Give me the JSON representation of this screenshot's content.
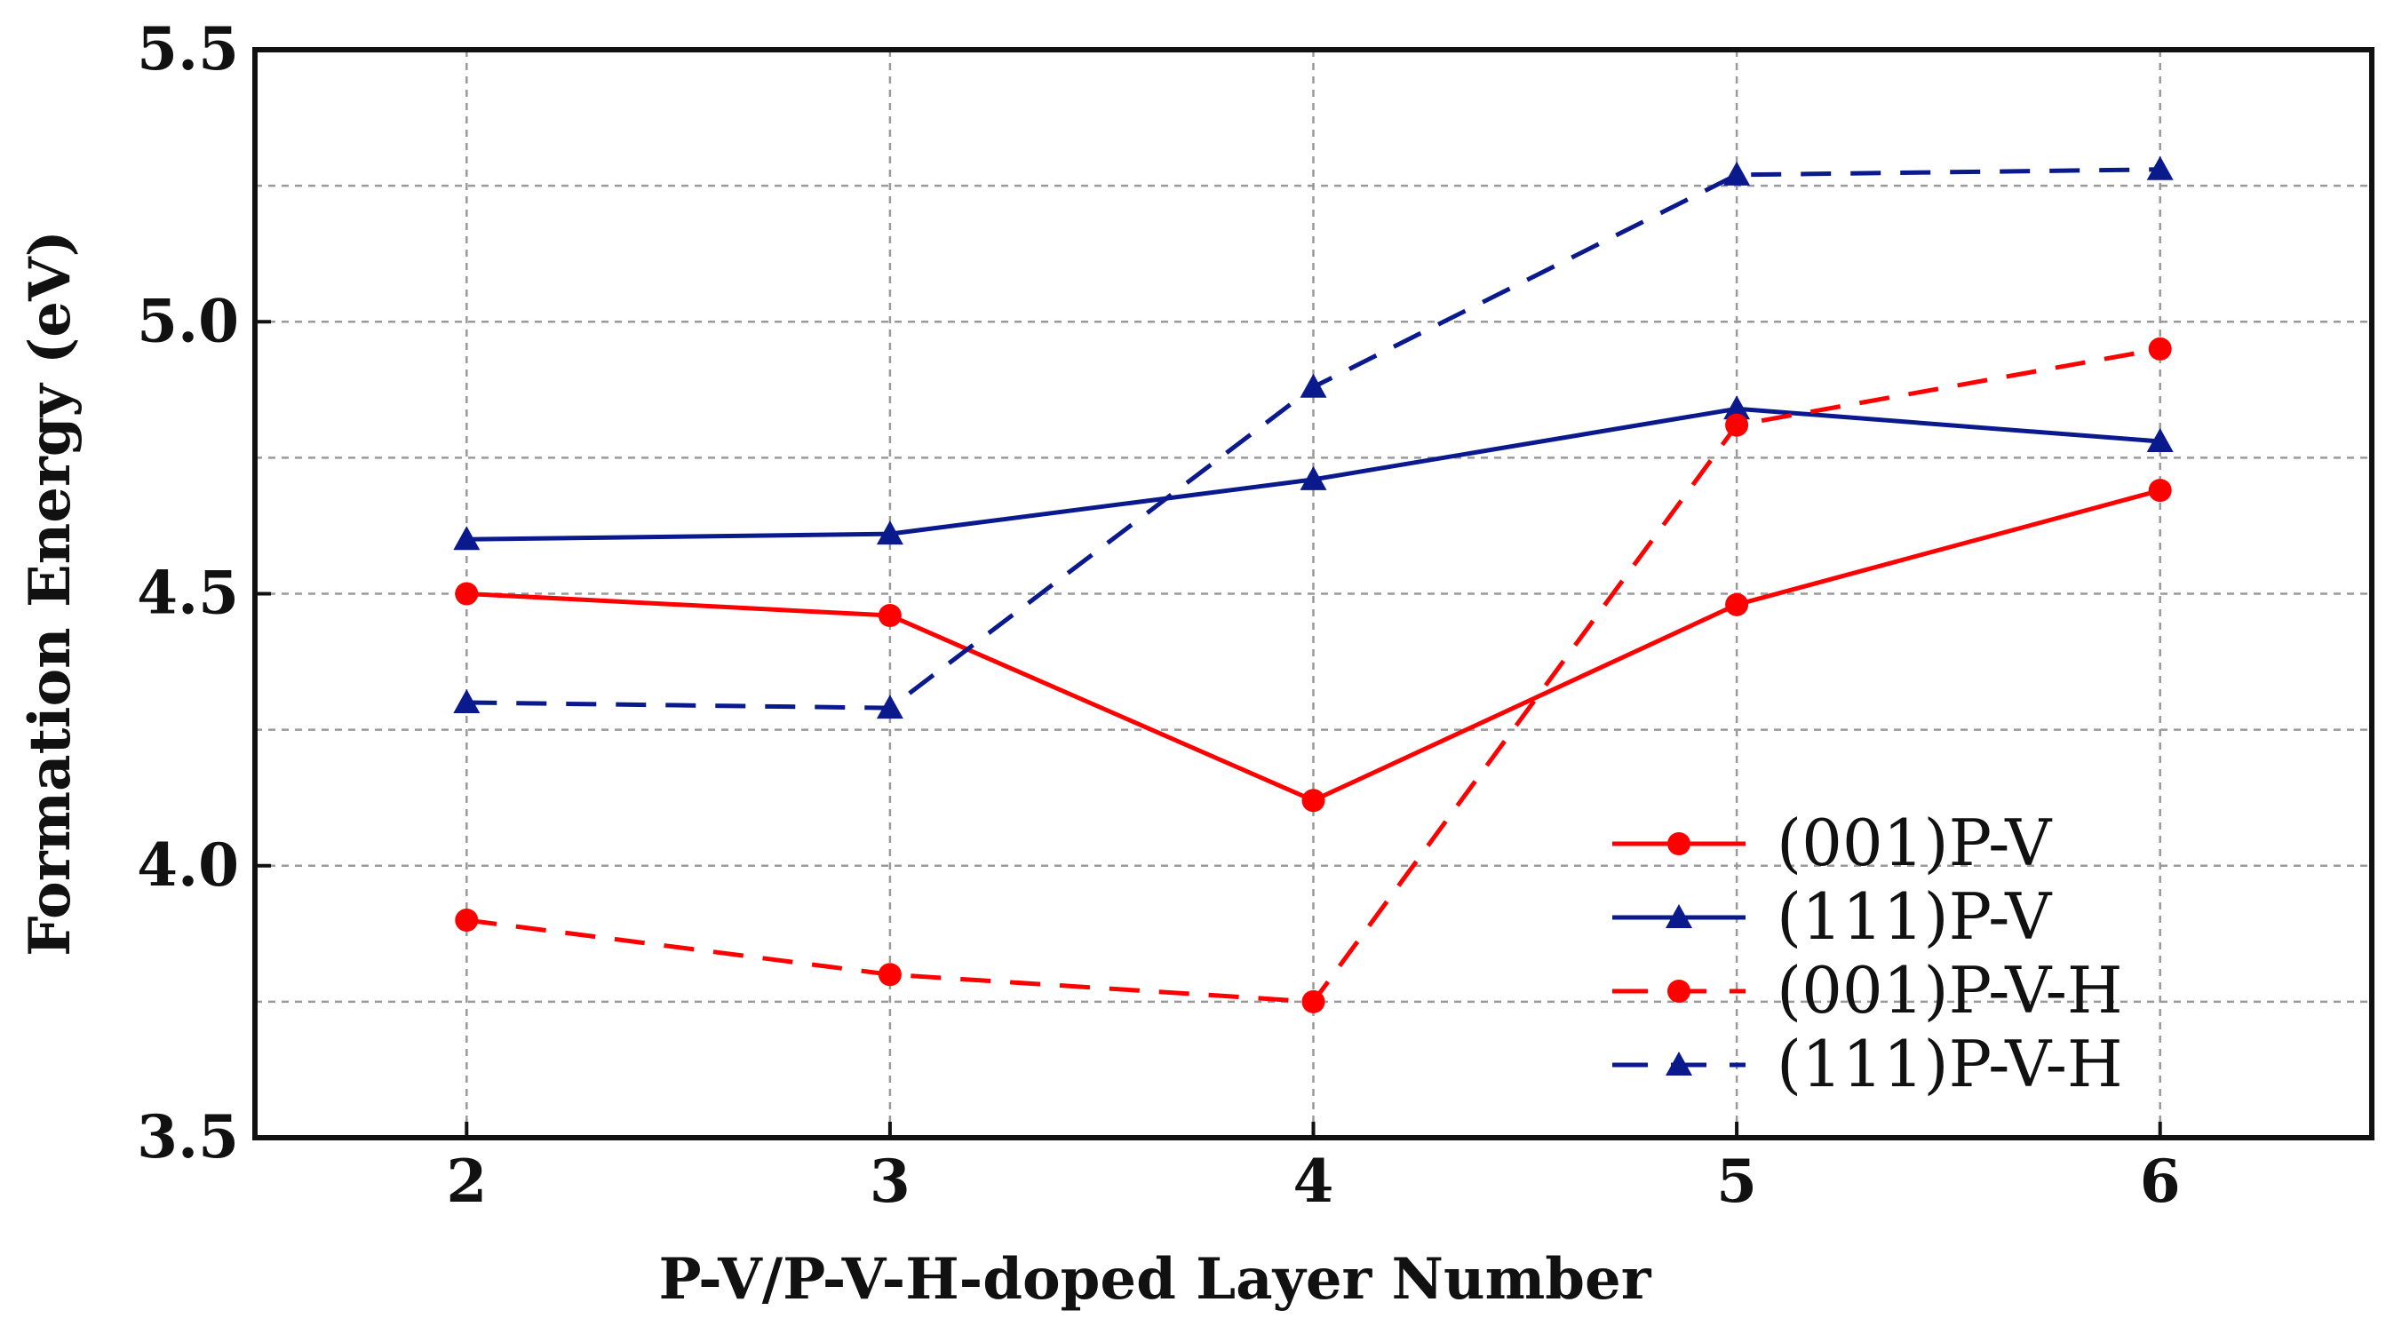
{
  "chart_data": {
    "type": "line",
    "title": "",
    "xlabel": "P-V/P-V-H-doped Layer Number",
    "ylabel": "Formation Energy (eV)",
    "x": [
      2,
      3,
      4,
      5,
      6
    ],
    "xlim": [
      1.5,
      6.5
    ],
    "ylim": [
      3.5,
      5.5
    ],
    "x_ticks": [
      "2",
      "3",
      "4",
      "5",
      "6"
    ],
    "y_ticks": [
      "3.5",
      "4.0",
      "4.5",
      "5.0",
      "5.5"
    ],
    "grid": true,
    "legend_position": "bottom-right",
    "series": [
      {
        "name": "(001)P-V",
        "values": [
          4.5,
          4.46,
          4.12,
          4.48,
          4.69
        ],
        "color": "#ff0000",
        "linestyle": "solid",
        "marker": "circle"
      },
      {
        "name": "(111)P-V",
        "values": [
          4.6,
          4.61,
          4.71,
          4.84,
          4.78
        ],
        "color": "#0a1a8c",
        "linestyle": "solid",
        "marker": "triangle"
      },
      {
        "name": "(001)P-V-H",
        "values": [
          3.9,
          3.8,
          3.75,
          4.81,
          4.95
        ],
        "color": "#ff0000",
        "linestyle": "dashed",
        "marker": "circle"
      },
      {
        "name": "(111)P-V-H",
        "values": [
          4.3,
          4.29,
          4.88,
          5.27,
          5.28
        ],
        "color": "#0a1a8c",
        "linestyle": "dashed",
        "marker": "triangle"
      }
    ]
  }
}
